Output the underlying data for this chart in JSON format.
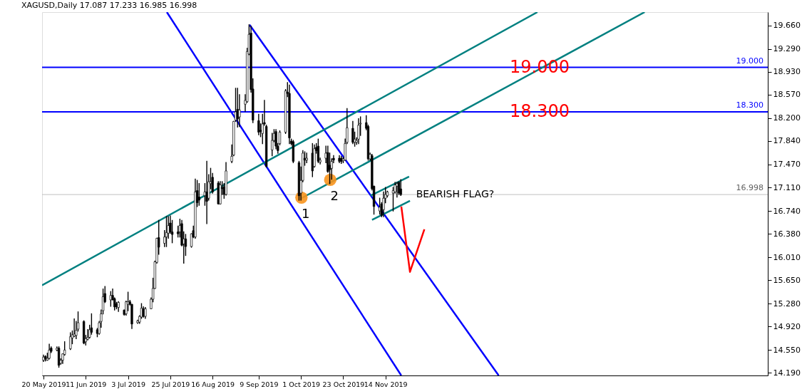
{
  "chart_data": {
    "type": "candlestick",
    "title": "XAGUSD,Daily  17.087 17.233 16.985 16.998",
    "color": "#000000",
    "x": [
      "2019-05-20",
      "2019-05-21",
      "2019-05-22",
      "2019-05-23",
      "2019-05-24",
      "2019-05-27",
      "2019-05-28",
      "2019-05-29",
      "2019-05-30",
      "2019-05-31",
      "2019-06-03",
      "2019-06-04",
      "2019-06-05",
      "2019-06-06",
      "2019-06-07",
      "2019-06-10",
      "2019-06-11",
      "2019-06-12",
      "2019-06-13",
      "2019-06-14",
      "2019-06-17",
      "2019-06-18",
      "2019-06-19",
      "2019-06-20",
      "2019-06-21",
      "2019-06-24",
      "2019-06-25",
      "2019-06-26",
      "2019-06-27",
      "2019-06-28",
      "2019-07-01",
      "2019-07-02",
      "2019-07-03",
      "2019-07-04",
      "2019-07-05",
      "2019-07-08",
      "2019-07-09",
      "2019-07-10",
      "2019-07-11",
      "2019-07-12",
      "2019-07-15",
      "2019-07-16",
      "2019-07-17",
      "2019-07-18",
      "2019-07-19",
      "2019-07-22",
      "2019-07-23",
      "2019-07-24",
      "2019-07-25",
      "2019-07-26",
      "2019-07-29",
      "2019-07-30",
      "2019-07-31",
      "2019-08-01",
      "2019-08-02",
      "2019-08-05",
      "2019-08-06",
      "2019-08-07",
      "2019-08-08",
      "2019-08-09",
      "2019-08-12",
      "2019-08-13",
      "2019-08-14",
      "2019-08-15",
      "2019-08-16",
      "2019-08-19",
      "2019-08-20",
      "2019-08-21",
      "2019-08-22",
      "2019-08-23",
      "2019-08-26",
      "2019-08-27",
      "2019-08-28",
      "2019-08-29",
      "2019-08-30",
      "2019-09-02",
      "2019-09-03",
      "2019-09-04",
      "2019-09-05",
      "2019-09-06",
      "2019-09-09",
      "2019-09-10",
      "2019-09-11",
      "2019-09-12",
      "2019-09-13",
      "2019-09-16",
      "2019-09-17",
      "2019-09-18",
      "2019-09-19",
      "2019-09-20",
      "2019-09-23",
      "2019-09-24",
      "2019-09-25",
      "2019-09-26",
      "2019-09-27",
      "2019-09-30",
      "2019-10-01",
      "2019-10-02",
      "2019-10-03",
      "2019-10-04",
      "2019-10-07",
      "2019-10-08",
      "2019-10-09",
      "2019-10-10",
      "2019-10-11",
      "2019-10-14",
      "2019-10-15",
      "2019-10-16",
      "2019-10-17",
      "2019-10-18",
      "2019-10-21",
      "2019-10-22",
      "2019-10-23",
      "2019-10-24",
      "2019-10-25",
      "2019-10-28",
      "2019-10-29",
      "2019-10-30",
      "2019-10-31",
      "2019-11-01",
      "2019-11-04",
      "2019-11-05",
      "2019-11-06",
      "2019-11-07",
      "2019-11-08",
      "2019-11-11",
      "2019-11-12",
      "2019-11-13",
      "2019-11-14",
      "2019-11-15",
      "2019-11-18",
      "2019-11-19",
      "2019-11-20",
      "2019-11-21",
      "2019-11-22"
    ],
    "ohlc": [
      [
        14.39,
        14.47,
        14.37,
        14.44
      ],
      [
        14.45,
        14.46,
        14.38,
        14.41
      ],
      [
        14.39,
        14.5,
        14.39,
        14.42
      ],
      [
        14.42,
        14.64,
        14.41,
        14.55
      ],
      [
        14.58,
        14.6,
        14.51,
        14.53
      ],
      [
        14.55,
        14.6,
        14.54,
        14.58
      ],
      [
        14.58,
        14.6,
        14.28,
        14.31
      ],
      [
        14.34,
        14.41,
        14.33,
        14.39
      ],
      [
        14.39,
        14.49,
        14.34,
        14.49
      ],
      [
        14.48,
        14.68,
        14.47,
        14.55
      ],
      [
        14.57,
        14.82,
        14.56,
        14.76
      ],
      [
        14.74,
        14.85,
        14.65,
        14.79
      ],
      [
        14.77,
        15.04,
        14.76,
        14.8
      ],
      [
        14.78,
        15.0,
        14.73,
        14.86
      ],
      [
        14.88,
        15.15,
        14.85,
        14.98
      ],
      [
        15.0,
        15.01,
        14.65,
        14.66
      ],
      [
        14.68,
        14.78,
        14.63,
        14.73
      ],
      [
        14.72,
        14.87,
        14.71,
        14.75
      ],
      [
        14.75,
        14.94,
        14.74,
        14.87
      ],
      [
        14.9,
        15.12,
        14.8,
        14.83
      ],
      [
        14.87,
        14.89,
        14.76,
        14.81
      ],
      [
        14.81,
        15.0,
        14.8,
        14.98
      ],
      [
        15.0,
        15.18,
        14.91,
        15.12
      ],
      [
        15.17,
        15.51,
        15.12,
        15.39
      ],
      [
        15.44,
        15.55,
        15.3,
        15.31
      ],
      [
        15.34,
        15.47,
        15.24,
        15.41
      ],
      [
        15.41,
        15.51,
        15.34,
        15.34
      ],
      [
        15.36,
        15.37,
        15.18,
        15.23
      ],
      [
        15.28,
        15.3,
        15.2,
        15.23
      ],
      [
        15.22,
        15.31,
        15.16,
        15.3
      ],
      [
        15.18,
        15.18,
        15.1,
        15.11
      ],
      [
        15.12,
        15.32,
        15.1,
        15.31
      ],
      [
        15.27,
        15.46,
        15.17,
        15.31
      ],
      [
        15.31,
        15.33,
        15.26,
        15.27
      ],
      [
        15.27,
        15.27,
        14.89,
        14.96
      ],
      [
        14.98,
        15.02,
        14.97,
        15.01
      ],
      [
        14.99,
        15.09,
        14.97,
        15.08
      ],
      [
        15.07,
        15.28,
        15.05,
        15.21
      ],
      [
        15.2,
        15.23,
        15.07,
        15.08
      ],
      [
        15.08,
        15.22,
        15.05,
        15.2
      ],
      [
        15.2,
        15.37,
        15.2,
        15.35
      ],
      [
        15.35,
        15.68,
        15.31,
        15.52
      ],
      [
        15.52,
        15.95,
        15.52,
        15.94
      ],
      [
        15.93,
        16.31,
        15.92,
        16.31
      ],
      [
        16.32,
        16.59,
        16.06,
        16.17
      ],
      [
        16.23,
        16.43,
        16.18,
        16.33
      ],
      [
        16.33,
        16.65,
        16.18,
        16.4
      ],
      [
        16.39,
        16.65,
        16.31,
        16.51
      ],
      [
        16.55,
        16.66,
        16.39,
        16.41
      ],
      [
        16.41,
        16.59,
        16.24,
        16.37
      ],
      [
        16.41,
        16.5,
        16.33,
        16.38
      ],
      [
        16.41,
        16.61,
        16.33,
        16.51
      ],
      [
        16.54,
        16.59,
        16.19,
        16.2
      ],
      [
        16.22,
        16.41,
        15.92,
        16.3
      ],
      [
        16.3,
        16.37,
        16.04,
        16.18
      ],
      [
        16.18,
        16.38,
        16.17,
        16.38
      ],
      [
        16.43,
        16.5,
        16.32,
        16.33
      ],
      [
        16.33,
        17.24,
        16.31,
        17.04
      ],
      [
        17.06,
        17.22,
        16.81,
        16.87
      ],
      [
        16.96,
        17.17,
        16.83,
        16.91
      ],
      [
        16.98,
        17.17,
        16.83,
        17.04
      ],
      [
        17.04,
        17.52,
        16.54,
        16.89
      ],
      [
        16.94,
        17.31,
        16.91,
        17.2
      ],
      [
        17.17,
        17.41,
        17.09,
        17.2
      ],
      [
        17.27,
        17.33,
        17.02,
        17.04
      ],
      [
        17.18,
        17.2,
        16.85,
        16.85
      ],
      [
        16.85,
        17.2,
        16.85,
        17.15
      ],
      [
        17.11,
        17.2,
        17.0,
        17.09
      ],
      [
        17.12,
        17.17,
        16.94,
        17.0
      ],
      [
        17.0,
        17.5,
        16.99,
        17.37
      ],
      [
        17.52,
        17.78,
        17.5,
        17.6
      ],
      [
        17.62,
        18.15,
        17.61,
        18.15
      ],
      [
        18.17,
        18.67,
        18.15,
        18.3
      ],
      [
        18.34,
        18.67,
        18.06,
        18.19
      ],
      [
        18.22,
        18.57,
        18.07,
        18.33
      ],
      [
        18.42,
        18.57,
        18.31,
        18.48
      ],
      [
        18.46,
        19.3,
        18.45,
        19.25
      ],
      [
        19.21,
        19.67,
        19.2,
        19.52
      ],
      [
        19.54,
        19.65,
        18.61,
        18.65
      ],
      [
        18.66,
        18.82,
        18.13,
        18.17
      ],
      [
        18.16,
        18.26,
        17.94,
        17.98
      ],
      [
        18.01,
        18.11,
        17.91,
        17.99
      ],
      [
        17.96,
        18.26,
        17.8,
        18.11
      ],
      [
        18.13,
        18.48,
        18.09,
        18.11
      ],
      [
        18.07,
        18.09,
        17.43,
        17.44
      ],
      [
        17.7,
        17.96,
        17.61,
        17.85
      ],
      [
        17.85,
        18.02,
        17.83,
        17.96
      ],
      [
        17.99,
        18.02,
        17.72,
        17.76
      ],
      [
        17.76,
        17.8,
        17.65,
        17.69
      ],
      [
        17.8,
        18.0,
        17.78,
        17.98
      ],
      [
        17.98,
        18.65,
        17.96,
        18.63
      ],
      [
        18.61,
        18.76,
        18.54,
        18.59
      ],
      [
        18.59,
        18.72,
        17.8,
        17.89
      ],
      [
        17.84,
        17.87,
        17.78,
        17.8
      ],
      [
        17.83,
        17.85,
        17.5,
        17.52
      ],
      [
        17.5,
        17.52,
        16.91,
        16.98
      ],
      [
        17.02,
        17.43,
        16.91,
        17.22
      ],
      [
        17.22,
        17.69,
        17.2,
        17.65
      ],
      [
        17.57,
        17.67,
        17.46,
        17.54
      ],
      [
        17.54,
        17.65,
        17.5,
        17.57
      ],
      [
        17.65,
        17.8,
        17.28,
        17.37
      ],
      [
        17.44,
        17.78,
        17.43,
        17.72
      ],
      [
        17.74,
        17.8,
        17.65,
        17.69
      ],
      [
        17.76,
        17.87,
        17.5,
        17.52
      ],
      [
        17.51,
        17.57,
        17.48,
        17.54
      ],
      [
        17.57,
        17.76,
        17.5,
        17.65
      ],
      [
        17.66,
        17.76,
        17.35,
        17.36
      ],
      [
        17.46,
        17.65,
        17.17,
        17.39
      ],
      [
        17.41,
        17.56,
        17.24,
        17.52
      ],
      [
        17.57,
        17.61,
        17.5,
        17.54
      ],
      [
        17.57,
        17.61,
        17.5,
        17.52
      ],
      [
        17.57,
        17.6,
        17.49,
        17.52
      ],
      [
        17.53,
        17.58,
        17.5,
        17.56
      ],
      [
        17.54,
        17.87,
        17.54,
        17.8
      ],
      [
        17.82,
        18.35,
        17.8,
        18.05
      ],
      [
        18.04,
        18.15,
        17.8,
        17.82
      ],
      [
        17.82,
        17.98,
        17.76,
        17.87
      ],
      [
        17.82,
        17.89,
        17.79,
        17.85
      ],
      [
        17.87,
        18.19,
        17.8,
        18.09
      ],
      [
        18.11,
        18.22,
        17.93,
        18.12
      ],
      [
        18.13,
        18.24,
        18.02,
        18.04
      ],
      [
        18.07,
        18.09,
        17.54,
        17.56
      ],
      [
        17.56,
        17.65,
        17.54,
        17.63
      ],
      [
        17.61,
        17.63,
        17.07,
        17.09
      ],
      [
        17.13,
        17.13,
        16.69,
        16.81
      ],
      [
        16.74,
        16.94,
        16.69,
        16.8
      ],
      [
        16.85,
        16.87,
        16.65,
        16.67
      ],
      [
        16.76,
        17.04,
        16.65,
        16.94
      ],
      [
        16.94,
        17.11,
        16.87,
        17.0
      ],
      [
        16.98,
        17.05,
        16.96,
        17.04
      ],
      [
        17.02,
        17.11,
        16.74,
        17.06
      ],
      [
        17.04,
        17.19,
        17.02,
        17.15
      ],
      [
        17.13,
        17.19,
        16.96,
        17.17
      ],
      [
        17.19,
        17.2,
        17.0,
        17.02
      ],
      [
        17.087,
        17.233,
        16.985,
        16.998
      ]
    ],
    "series": [
      {
        "type": "line",
        "color": "#0000ff",
        "x": [
          "2019-07-23T05:00",
          "2019-11-22T05:00"
        ],
        "values": [
          19.87,
          14.15
        ]
      },
      {
        "type": "line",
        "color": "#0000ff",
        "x": [
          "2019-09-04T06:00",
          "2020-01-11T22:00"
        ],
        "values": [
          19.67,
          14.15
        ]
      },
      {
        "type": "line",
        "color": "#008080",
        "x": [
          "2019-05-19T06:00",
          "2020-02-01T02:00"
        ],
        "values": [
          15.57,
          19.87
        ]
      },
      {
        "type": "line",
        "color": "#008080",
        "x": [
          "2019-10-01T06:00",
          "2020-03-27T22:00"
        ],
        "values": [
          16.94,
          19.87
        ]
      },
      {
        "type": "line",
        "color": "#008080",
        "x": [
          "2019-11-06T05:00",
          "2019-11-26T07:00"
        ],
        "values": [
          16.98,
          17.28
        ]
      },
      {
        "type": "line",
        "color": "#008080",
        "x": [
          "2019-11-07",
          "2019-11-26T18:00"
        ],
        "values": [
          16.6,
          16.9
        ]
      },
      {
        "type": "line",
        "color": "#ff0000",
        "x": [
          "2019-11-22T06:00",
          "2019-11-26T18:00",
          "2019-12-04T06:00"
        ],
        "values": [
          16.81,
          15.78,
          16.45
        ]
      },
      {
        "type": "scatter",
        "color": "#f7941d",
        "marker": "circle",
        "x": [
          "2019-10-01T06:00",
          "2019-10-16T06:00"
        ],
        "values": [
          16.95,
          17.23
        ]
      }
    ],
    "xlim": [
      "2019-05-19T06:00",
      "2020-05-31"
    ],
    "ylim": [
      14.15,
      19.87
    ],
    "xticks": [
      {
        "value": "2019-05-20",
        "label": "20 May 2019"
      },
      {
        "value": "2019-06-11",
        "label": "11 Jun 2019"
      },
      {
        "value": "2019-07-03",
        "label": "3 Jul 2019"
      },
      {
        "value": "2019-07-25",
        "label": "25 Jul 2019"
      },
      {
        "value": "2019-08-16",
        "label": "16 Aug 2019"
      },
      {
        "value": "2019-09-09",
        "label": "9 Sep 2019"
      },
      {
        "value": "2019-10-01",
        "label": "1 Oct 2019"
      },
      {
        "value": "2019-10-23",
        "label": "23 Oct 2019"
      },
      {
        "value": "2019-11-14",
        "label": "14 Nov 2019"
      }
    ],
    "yticks": [
      {
        "value": 19.66,
        "label": "19.660"
      },
      {
        "value": 19.29,
        "label": "19.290"
      },
      {
        "value": 18.93,
        "label": "18.930"
      },
      {
        "value": 18.57,
        "label": "18.570"
      },
      {
        "value": 18.2,
        "label": "18.200"
      },
      {
        "value": 17.84,
        "label": "17.840"
      },
      {
        "value": 17.47,
        "label": "17.470"
      },
      {
        "value": 17.11,
        "label": "17.110"
      },
      {
        "value": 16.74,
        "label": "16.740"
      },
      {
        "value": 16.38,
        "label": "16.380"
      },
      {
        "value": 16.01,
        "label": "16.010"
      },
      {
        "value": 15.65,
        "label": "15.650"
      },
      {
        "value": 15.28,
        "label": "15.280"
      },
      {
        "value": 14.92,
        "label": "14.920"
      },
      {
        "value": 14.55,
        "label": "14.550"
      },
      {
        "value": 14.19,
        "label": "14.190"
      }
    ],
    "ref_lines": [
      {
        "axis": "y",
        "value": 19.0,
        "label": "19.000",
        "color": "#0000ff"
      },
      {
        "axis": "y",
        "value": 18.3,
        "label": "18.300",
        "color": "#0000ff"
      },
      {
        "axis": "y",
        "value": 16.998,
        "label": "16.998",
        "color": "#c0c0c0"
      }
    ],
    "annotations": [
      {
        "text": "19.000",
        "x": "2020-02-02T06:00",
        "y": 19.0
      },
      {
        "text": "18.300",
        "x": "2020-02-02T06:00",
        "y": 18.3
      },
      {
        "text": "1",
        "x": "2019-10-01T06:00",
        "y": 16.95
      },
      {
        "text": "2",
        "x": "2019-10-16T06:00",
        "y": 17.23
      },
      {
        "text": "BEARISH FLAG?",
        "x": "2019-12-20T06:00",
        "y": 17.0
      }
    ]
  }
}
